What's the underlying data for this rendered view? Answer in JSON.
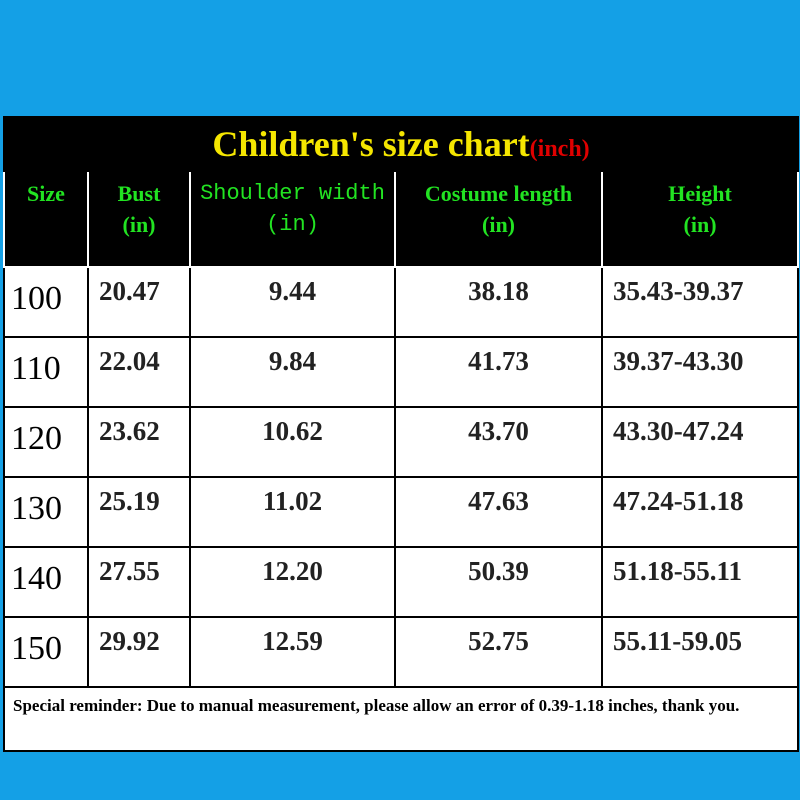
{
  "title": "Children's size chart",
  "title_unit": "(inch)",
  "table": {
    "headers": [
      [
        "Size"
      ],
      [
        "Bust",
        "(in)"
      ],
      [
        "Shoulder width",
        "(in)"
      ],
      [
        "Costume length",
        "(in)"
      ],
      [
        "Height",
        "(in)"
      ]
    ],
    "rows": [
      [
        "100",
        "20.47",
        "9.44",
        "38.18",
        "35.43-39.37"
      ],
      [
        "110",
        "22.04",
        "9.84",
        "41.73",
        "39.37-43.30"
      ],
      [
        "120",
        "23.62",
        "10.62",
        "43.70",
        "43.30-47.24"
      ],
      [
        "130",
        "25.19",
        "11.02",
        "47.63",
        "47.24-51.18"
      ],
      [
        "140",
        "27.55",
        "12.20",
        "50.39",
        "51.18-55.11"
      ],
      [
        "150",
        "29.92",
        "12.59",
        "52.75",
        "55.11-59.05"
      ]
    ]
  },
  "note": "Special reminder: Due to manual measurement, please allow an error of 0.39-1.18 inches, thank you."
}
